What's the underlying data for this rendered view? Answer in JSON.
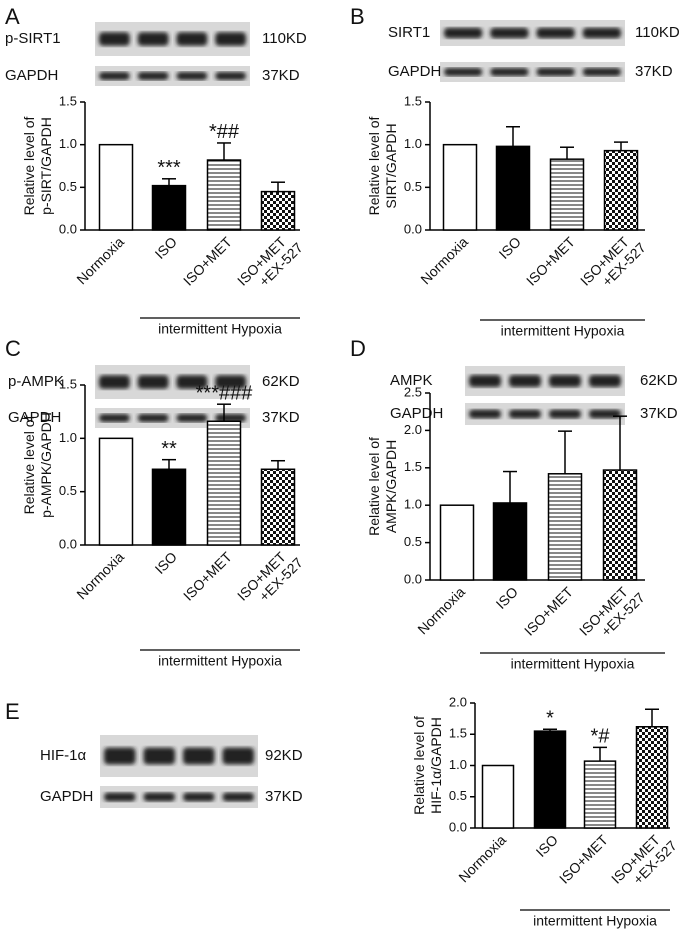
{
  "chart_data": [
    {
      "type": "bar",
      "panel": "A",
      "blots": [
        {
          "protein": "p-SIRT1",
          "size": "110KD"
        },
        {
          "protein": "GAPDH",
          "size": "37KD"
        }
      ],
      "ylabel": [
        "Relative level of",
        "p-SIRT/GAPDH"
      ],
      "categories": [
        [
          "Normoxia"
        ],
        [
          "ISO"
        ],
        [
          "ISO+MET"
        ],
        [
          "ISO+MET",
          "+EX-527"
        ]
      ],
      "values": [
        1.0,
        0.52,
        0.82,
        0.45
      ],
      "errors": [
        null,
        0.08,
        0.2,
        0.11
      ],
      "annotations": [
        null,
        "***",
        "*##",
        null
      ],
      "patterns": [
        "open",
        "solid",
        "horizontal-lines",
        "checkerboard"
      ],
      "group_label": "intermittent Hypoxia",
      "ylim": [
        0,
        1.5
      ],
      "yticks": [
        {
          "value": 0,
          "label": "0.0"
        },
        0.5,
        {
          "value": 1,
          "label": "1.0"
        },
        1.5
      ]
    },
    {
      "type": "bar",
      "panel": "B",
      "blots": [
        {
          "protein": "SIRT1",
          "size": "110KD"
        },
        {
          "protein": "GAPDH",
          "size": "37KD"
        }
      ],
      "ylabel": [
        "Relative level of",
        "SIRT/GAPDH"
      ],
      "categories": [
        [
          "Normoxia"
        ],
        [
          "ISO"
        ],
        [
          "ISO+MET"
        ],
        [
          "ISO+MET",
          "+EX-527"
        ]
      ],
      "values": [
        1.0,
        0.98,
        0.83,
        0.93
      ],
      "errors": [
        null,
        0.23,
        0.14,
        0.1
      ],
      "annotations": [
        null,
        null,
        null,
        null
      ],
      "patterns": [
        "open",
        "solid",
        "horizontal-lines",
        "checkerboard"
      ],
      "group_label": "intermittent Hypoxia",
      "ylim": [
        0,
        1.5
      ],
      "yticks": [
        {
          "value": 0,
          "label": "0.0"
        },
        0.5,
        {
          "value": 1,
          "label": "1.0"
        },
        1.5
      ]
    },
    {
      "type": "bar",
      "panel": "C",
      "blots": [
        {
          "protein": "p-AMPK",
          "size": "62KD"
        },
        {
          "protein": "GAPDH",
          "size": "37KD"
        }
      ],
      "ylabel": [
        "Relative level of",
        "p-AMPK/GAPDH"
      ],
      "categories": [
        [
          "Normoxia"
        ],
        [
          "ISO"
        ],
        [
          "ISO+MET"
        ],
        [
          "ISO+MET",
          "+EX-527"
        ]
      ],
      "values": [
        1.0,
        0.71,
        1.16,
        0.71
      ],
      "errors": [
        null,
        0.09,
        0.16,
        0.08
      ],
      "annotations": [
        null,
        "**",
        "***###",
        null
      ],
      "patterns": [
        "open",
        "solid",
        "horizontal-lines",
        "checkerboard"
      ],
      "group_label": "intermittent Hypoxia",
      "ylim": [
        0,
        1.5
      ],
      "yticks": [
        {
          "value": 0,
          "label": "0.0"
        },
        0.5,
        {
          "value": 1,
          "label": "1.0"
        },
        1.5
      ]
    },
    {
      "type": "bar",
      "panel": "D",
      "blots": [
        {
          "protein": "AMPK",
          "size": "62KD"
        },
        {
          "protein": "GAPDH",
          "size": "37KD"
        }
      ],
      "ylabel": [
        "Relative level of",
        "AMPK/GAPDH"
      ],
      "categories": [
        [
          "Normoxia"
        ],
        [
          "ISO"
        ],
        [
          "ISO+MET"
        ],
        [
          "ISO+MET",
          "+EX-527"
        ]
      ],
      "values": [
        1.0,
        1.03,
        1.42,
        1.47
      ],
      "errors": [
        null,
        0.42,
        0.57,
        0.72
      ],
      "annotations": [
        null,
        null,
        null,
        null
      ],
      "patterns": [
        "open",
        "solid",
        "horizontal-lines",
        "checkerboard"
      ],
      "group_label": "intermittent Hypoxia",
      "ylim": [
        0,
        2.5
      ],
      "yticks": [
        {
          "value": 0,
          "label": "0.0"
        },
        0.5,
        {
          "value": 1,
          "label": "1.0"
        },
        1.5,
        {
          "value": 2,
          "label": "2.0"
        },
        2.5
      ]
    },
    {
      "type": "bar",
      "panel": "E",
      "blots": [
        {
          "protein": "HIF-1α",
          "size": "92KD"
        },
        {
          "protein": "GAPDH",
          "size": "37KD"
        }
      ],
      "ylabel": [
        "Relative level of",
        "HIF-1α/GAPDH"
      ],
      "categories": [
        [
          "Normoxia"
        ],
        [
          "ISO"
        ],
        [
          "ISO+MET"
        ],
        [
          "ISO+MET",
          "+EX-527"
        ]
      ],
      "values": [
        1.0,
        1.55,
        1.07,
        1.62
      ],
      "errors": [
        null,
        0.03,
        0.22,
        0.28
      ],
      "annotations": [
        null,
        "*",
        "*#",
        null
      ],
      "patterns": [
        "open",
        "solid",
        "horizontal-lines",
        "checkerboard"
      ],
      "group_label": "intermittent Hypoxia",
      "ylim": [
        0,
        2
      ],
      "yticks": [
        {
          "value": 0,
          "label": "0.0"
        },
        0.5,
        {
          "value": 1,
          "label": "1.0"
        },
        1.5,
        {
          "value": 2,
          "label": "2.0"
        }
      ]
    }
  ]
}
